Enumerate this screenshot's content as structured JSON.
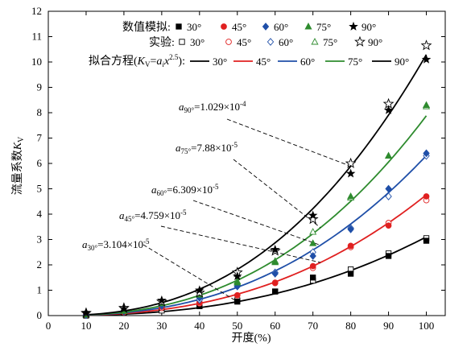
{
  "chart_data": {
    "type": "scatter",
    "xlabel": "开度(%)",
    "ylabel": "流量系数",
    "ylabel_symbol": "K",
    "ylabel_sub": "V",
    "xlim": [
      0,
      105
    ],
    "ylim": [
      0,
      12
    ],
    "xticks": [
      0,
      10,
      20,
      30,
      40,
      50,
      60,
      70,
      80,
      90,
      100
    ],
    "yticks": [
      0,
      1,
      2,
      3,
      4,
      5,
      6,
      7,
      8,
      9,
      10,
      11,
      12
    ],
    "legend": {
      "numerical_label": "数值模拟:",
      "experiment_label": "实验:",
      "fit_label_prefix": "拟合方程(",
      "fit_label_K": "K",
      "fit_label_Ksub": "V",
      "fit_label_eq": "=",
      "fit_label_a": "a",
      "fit_label_asub": "i",
      "fit_label_x": "x",
      "fit_label_exp": "2.5",
      "fit_label_suffix": "):"
    },
    "series": [
      {
        "name": "30°",
        "color": "#000000",
        "marker": "square",
        "coef": 3.104e-05,
        "numerical": [
          [
            10,
            0.02
          ],
          [
            20,
            0.12
          ],
          [
            30,
            0.3
          ],
          [
            40,
            0.38
          ],
          [
            50,
            0.55
          ],
          [
            60,
            0.95
          ],
          [
            70,
            1.5
          ],
          [
            80,
            1.65
          ],
          [
            90,
            2.35
          ],
          [
            100,
            2.95
          ]
        ],
        "experiment": [
          [
            10,
            0.0
          ],
          [
            20,
            0.1
          ],
          [
            30,
            0.2
          ],
          [
            40,
            0.37
          ],
          [
            50,
            0.6
          ],
          [
            60,
            0.95
          ],
          [
            70,
            1.38
          ],
          [
            80,
            1.82
          ],
          [
            90,
            2.45
          ],
          [
            100,
            3.05
          ]
        ]
      },
      {
        "name": "45°",
        "color": "#e02020",
        "marker": "circle",
        "coef": 4.759e-05,
        "numerical": [
          [
            10,
            0.03
          ],
          [
            20,
            0.15
          ],
          [
            30,
            0.35
          ],
          [
            40,
            0.52
          ],
          [
            50,
            0.8
          ],
          [
            60,
            1.3
          ],
          [
            70,
            1.95
          ],
          [
            80,
            2.75
          ],
          [
            90,
            3.55
          ],
          [
            100,
            4.7
          ]
        ],
        "experiment": [
          [
            10,
            0.02
          ],
          [
            20,
            0.13
          ],
          [
            30,
            0.3
          ],
          [
            40,
            0.48
          ],
          [
            50,
            0.8
          ],
          [
            60,
            1.28
          ],
          [
            70,
            1.88
          ],
          [
            80,
            2.7
          ],
          [
            90,
            3.65
          ],
          [
            100,
            4.55
          ]
        ]
      },
      {
        "name": "60°",
        "color": "#1f4fa8",
        "marker": "diamond",
        "coef": 6.309e-05,
        "numerical": [
          [
            10,
            0.03
          ],
          [
            20,
            0.18
          ],
          [
            30,
            0.42
          ],
          [
            40,
            0.7
          ],
          [
            50,
            1.15
          ],
          [
            60,
            1.65
          ],
          [
            70,
            2.35
          ],
          [
            80,
            3.4
          ],
          [
            90,
            5.0
          ],
          [
            100,
            6.4
          ]
        ],
        "experiment": [
          [
            10,
            0.02
          ],
          [
            20,
            0.16
          ],
          [
            30,
            0.38
          ],
          [
            40,
            0.62
          ],
          [
            50,
            1.15
          ],
          [
            60,
            1.7
          ],
          [
            70,
            2.5
          ],
          [
            80,
            3.45
          ],
          [
            90,
            4.7
          ],
          [
            100,
            6.3
          ]
        ]
      },
      {
        "name": "75°",
        "color": "#2e8b2e",
        "marker": "triangle",
        "coef": 7.88e-05,
        "numerical": [
          [
            10,
            0.05
          ],
          [
            20,
            0.2
          ],
          [
            30,
            0.5
          ],
          [
            40,
            0.82
          ],
          [
            50,
            1.3
          ],
          [
            60,
            2.1
          ],
          [
            70,
            2.85
          ],
          [
            80,
            4.7
          ],
          [
            90,
            6.3
          ],
          [
            100,
            8.3
          ]
        ],
        "experiment": [
          [
            10,
            0.04
          ],
          [
            20,
            0.18
          ],
          [
            30,
            0.48
          ],
          [
            40,
            0.85
          ],
          [
            50,
            1.35
          ],
          [
            60,
            2.15
          ],
          [
            70,
            3.3
          ],
          [
            80,
            4.65
          ],
          [
            90,
            6.3
          ],
          [
            100,
            8.25
          ]
        ]
      },
      {
        "name": "90°",
        "color": "#000000",
        "marker": "star",
        "coef": 0.0001029,
        "numerical": [
          [
            10,
            0.12
          ],
          [
            20,
            0.27
          ],
          [
            30,
            0.6
          ],
          [
            40,
            1.0
          ],
          [
            50,
            1.55
          ],
          [
            60,
            2.6
          ],
          [
            70,
            3.95
          ],
          [
            80,
            5.6
          ],
          [
            90,
            8.1
          ],
          [
            100,
            10.1
          ]
        ],
        "experiment": [
          [
            10,
            0.1
          ],
          [
            20,
            0.3
          ],
          [
            30,
            0.55
          ],
          [
            40,
            0.9
          ],
          [
            50,
            1.7
          ],
          [
            60,
            2.55
          ],
          [
            70,
            3.8
          ],
          [
            80,
            6.0
          ],
          [
            90,
            8.35
          ],
          [
            100,
            10.65
          ]
        ]
      }
    ],
    "annotations": [
      {
        "sym": "a",
        "sub": "90°",
        "text": "=1.029×10",
        "exp": "-4"
      },
      {
        "sym": "a",
        "sub": "75°",
        "text": "=7.88×10",
        "exp": "-5"
      },
      {
        "sym": "a",
        "sub": "60°",
        "text": "=6.309×10",
        "exp": "-5"
      },
      {
        "sym": "a",
        "sub": "45°",
        "text": "=4.759×10",
        "exp": "-5"
      },
      {
        "sym": "a",
        "sub": "30°",
        "text": "=3.104×10",
        "exp": "-5"
      }
    ]
  }
}
